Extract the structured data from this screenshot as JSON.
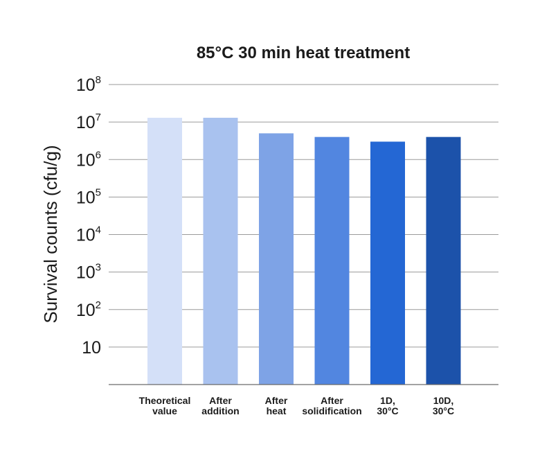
{
  "chart_data": {
    "type": "bar",
    "title": "85°C 30 min heat treatment",
    "ylabel": "Survival counts (cfu/g)",
    "xlabel": "",
    "yscale": "log",
    "ylim": [
      1,
      100000000
    ],
    "grid": true,
    "yticks": [
      {
        "value": 10,
        "base": "10",
        "exp": ""
      },
      {
        "value": 100,
        "base": "10",
        "exp": "2"
      },
      {
        "value": 1000,
        "base": "10",
        "exp": "3"
      },
      {
        "value": 10000,
        "base": "10",
        "exp": "4"
      },
      {
        "value": 100000,
        "base": "10",
        "exp": "5"
      },
      {
        "value": 1000000,
        "base": "10",
        "exp": "6"
      },
      {
        "value": 10000000,
        "base": "10",
        "exp": "7"
      },
      {
        "value": 100000000,
        "base": "10",
        "exp": "8"
      }
    ],
    "categories": [
      [
        "Theoretical",
        "value"
      ],
      [
        "After",
        "addition"
      ],
      [
        "After",
        "heat"
      ],
      [
        "After",
        "solidification"
      ],
      [
        "1D,",
        "30°C"
      ],
      [
        "10D,",
        "30°C"
      ]
    ],
    "values": [
      13000000,
      13000000,
      5000000,
      4000000,
      3000000,
      4000000
    ],
    "colors": [
      "#d4e0f8",
      "#a9c2ef",
      "#7ea3e6",
      "#5286e0",
      "#2467d4",
      "#1c52aa"
    ]
  }
}
